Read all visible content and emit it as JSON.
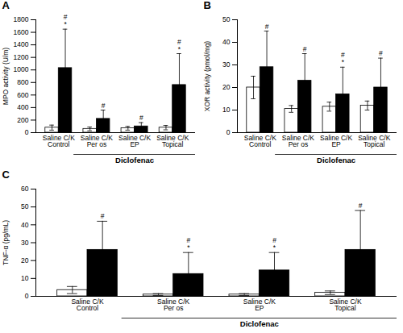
{
  "chart_data": [
    {
      "type": "bar",
      "title": "A",
      "ylabel": "MPO activity (U/m)",
      "categories": [
        "Saline C/K\nControl",
        "Saline C/K\nPer os",
        "Saline C/K\nEP",
        "Saline C/K\nTopical"
      ],
      "series": [
        {
          "color": "white",
          "values": [
            80,
            60,
            70,
            80
          ],
          "errors": [
            40,
            30,
            30,
            35
          ]
        },
        {
          "color": "black",
          "values": [
            1030,
            220,
            100,
            760
          ],
          "errors": [
            620,
            140,
            60,
            500
          ],
          "symbols": [
            "#",
            "#",
            "#",
            "#"
          ],
          "symbol_extras": [
            "*",
            null,
            null,
            "*"
          ]
        }
      ],
      "annotations": [
        "Diclofenac"
      ],
      "ylim": [
        0,
        1800
      ],
      "yticks": [
        0,
        200,
        400,
        600,
        800,
        1000,
        1200,
        1400,
        1600,
        1800
      ]
    },
    {
      "type": "bar",
      "title": "B",
      "ylabel": "XOR activity (pmol/mg)",
      "categories": [
        "Saline C/K\nControl",
        "Saline C/K\nPer os",
        "Saline C/K\nEP",
        "Saline C/K\nTopical"
      ],
      "series": [
        {
          "color": "white",
          "values": [
            20,
            10.5,
            11.5,
            12
          ],
          "errors": [
            5,
            1.5,
            2,
            2
          ]
        },
        {
          "color": "black",
          "values": [
            29,
            23,
            17,
            20
          ],
          "errors": [
            16,
            12,
            12,
            13
          ],
          "symbols": [
            "#",
            "#",
            "#",
            "#"
          ],
          "symbol_extras": [
            null,
            null,
            "*",
            null
          ]
        }
      ],
      "annotations": [
        "Diclofenac"
      ],
      "ylim": [
        0,
        50
      ],
      "yticks": [
        0,
        10,
        20,
        30,
        40,
        50
      ]
    },
    {
      "type": "bar",
      "title": "C",
      "ylabel": "TNF-α (pg/mL)",
      "categories": [
        "Saline C/K\nControl",
        "Saline C/K\nPer os",
        "Saline C/K\nEP",
        "Saline C/K\nTopical"
      ],
      "series": [
        {
          "color": "white",
          "values": [
            3.5,
            1.0,
            1.0,
            2.0
          ],
          "errors": [
            2.0,
            0.5,
            0.5,
            1.0
          ]
        },
        {
          "color": "black",
          "values": [
            26,
            12.5,
            14.5,
            26
          ],
          "errors": [
            16,
            12,
            10,
            22
          ],
          "symbols": [
            "#",
            "#",
            "#",
            "#"
          ],
          "symbol_extras": [
            null,
            "*",
            "*",
            null
          ]
        }
      ],
      "annotations": [
        "Diclofenac"
      ],
      "ylim": [
        0,
        60
      ],
      "yticks": [
        0,
        10,
        20,
        30,
        40,
        50,
        60
      ]
    }
  ]
}
